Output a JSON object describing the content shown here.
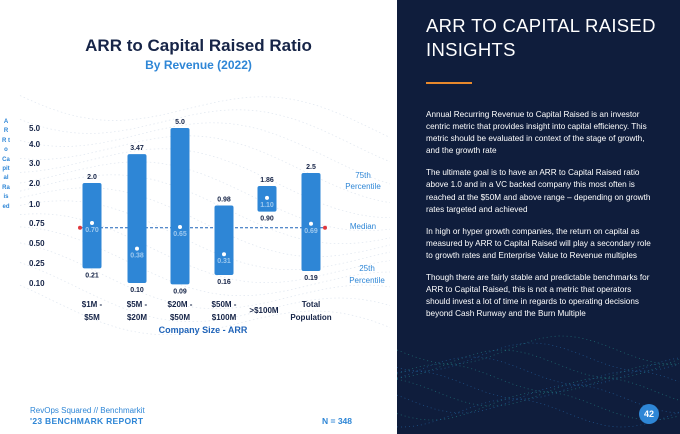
{
  "chart_data": {
    "type": "bar",
    "title": "ARR to Capital Raised Ratio",
    "subtitle": "By Revenue (2022)",
    "ylabel": "ARR to Capital Raised",
    "xlabel": "Company Size - ARR",
    "yticks": [
      "5.0",
      "4.0",
      "3.0",
      "2.0",
      "1.0",
      "0.75",
      "0.50",
      "0.25",
      "0.10"
    ],
    "ytick_values": [
      5.0,
      4.0,
      3.0,
      2.0,
      1.0,
      0.75,
      0.5,
      0.25,
      0.1
    ],
    "categories": [
      {
        "line1": "$1M -",
        "line2": "$5M"
      },
      {
        "line1": "$5M -",
        "line2": "$20M"
      },
      {
        "line1": "$20M -",
        "line2": "$50M"
      },
      {
        "line1": "$50M -",
        "line2": "$100M"
      },
      {
        "line1": ">$100M",
        "line2": ""
      },
      {
        "line1": "Total",
        "line2": "Population"
      }
    ],
    "percentile_75": [
      2.0,
      3.47,
      5.0,
      0.98,
      1.86,
      2.5
    ],
    "median": [
      0.7,
      0.38,
      0.65,
      0.31,
      1.1,
      0.69
    ],
    "percentile_25": [
      0.21,
      0.1,
      0.09,
      0.16,
      0.9,
      0.19
    ],
    "labels_75": [
      "2.0",
      "3.47",
      "5.0",
      "0.98",
      "1.86",
      "2.5"
    ],
    "labels_median": [
      "0.70",
      "0.38",
      "0.65",
      "0.31",
      "1.10",
      "0.69"
    ],
    "labels_25": [
      "0.21",
      "0.10",
      "0.09",
      "0.16",
      "0.90",
      "0.19"
    ],
    "overall_median": 0.69,
    "legend": {
      "p75": [
        "75th",
        "Percentile"
      ],
      "median": [
        "Median"
      ],
      "p25": [
        "25th",
        "Percentile"
      ]
    },
    "colors": {
      "bar": "#2e86d6",
      "median_line": "#1f63b8",
      "median_marker": "#e0393e",
      "label": "#162447"
    }
  },
  "footer": {
    "source": "RevOps Squared // Benchmarkit",
    "report": "'23 BENCHMARK REPORT",
    "n": "N = 348"
  },
  "panel": {
    "title": "ARR TO CAPITAL RAISED INSIGHTS",
    "paragraphs": [
      "Annual Recurring Revenue to Capital Raised is an investor centric metric that provides insight into capital efficiency. This metric should be evaluated in context of the stage of growth, and the growth rate",
      "The ultimate goal is to have an ARR to Capital Raised ratio above 1.0 and in a VC backed company this most often is reached at the $50M and above range – depending on growth rates targeted and achieved",
      "In high or hyper growth companies, the return on capital as measured by ARR to Capital Raised will play a secondary role to growth rates and Enterprise Value to Revenue multiples",
      "Though there are fairly stable and predictable benchmarks for ARR to Capital Raised, this is not a metric that operators should invest a lot of time in regards to operating decisions beyond Cash Runway and the Burn Multiple"
    ],
    "page_number": "42"
  }
}
